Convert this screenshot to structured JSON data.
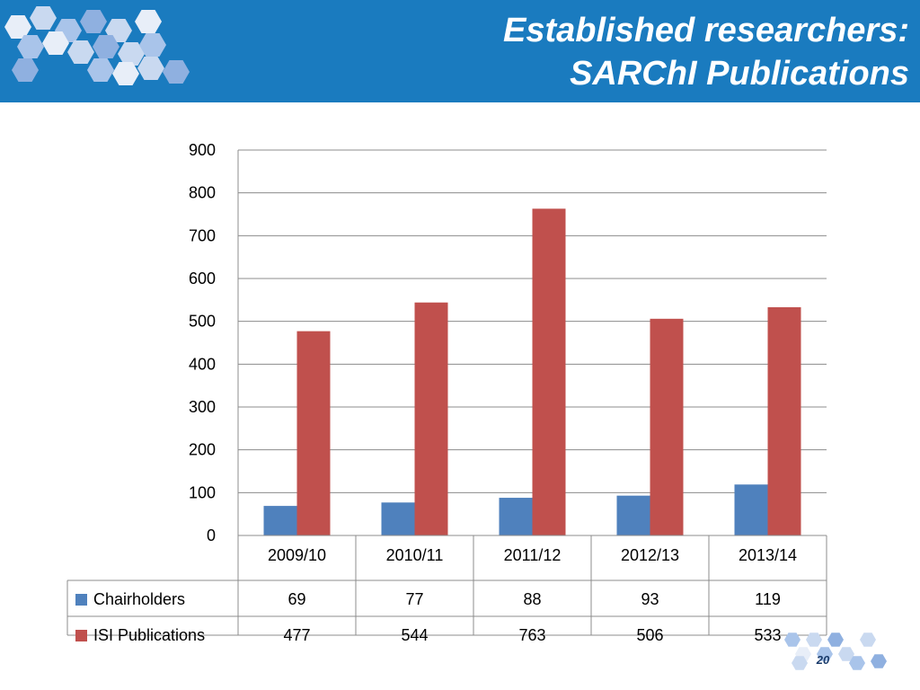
{
  "slide": {
    "title_line1": "Established researchers:",
    "title_line2": "SARChI Publications",
    "page_number": "20"
  },
  "colors": {
    "header": "#1a7bbf",
    "chairholders": "#4f81bd",
    "isi_publications": "#c0504d"
  },
  "chart_data": {
    "type": "bar",
    "categories": [
      "2009/10",
      "2010/11",
      "2011/12",
      "2012/13",
      "2013/14"
    ],
    "series": [
      {
        "name": "Chairholders",
        "values": [
          69,
          77,
          88,
          93,
          119
        ],
        "color": "#4f81bd"
      },
      {
        "name": "ISI Publications",
        "values": [
          477,
          544,
          763,
          506,
          533
        ],
        "color": "#c0504d"
      }
    ],
    "title": "",
    "xlabel": "",
    "ylabel": "",
    "ylim": [
      0,
      900
    ],
    "yticks": [
      0,
      100,
      200,
      300,
      400,
      500,
      600,
      700,
      800,
      900
    ],
    "grid": true,
    "legend": "data-table"
  }
}
